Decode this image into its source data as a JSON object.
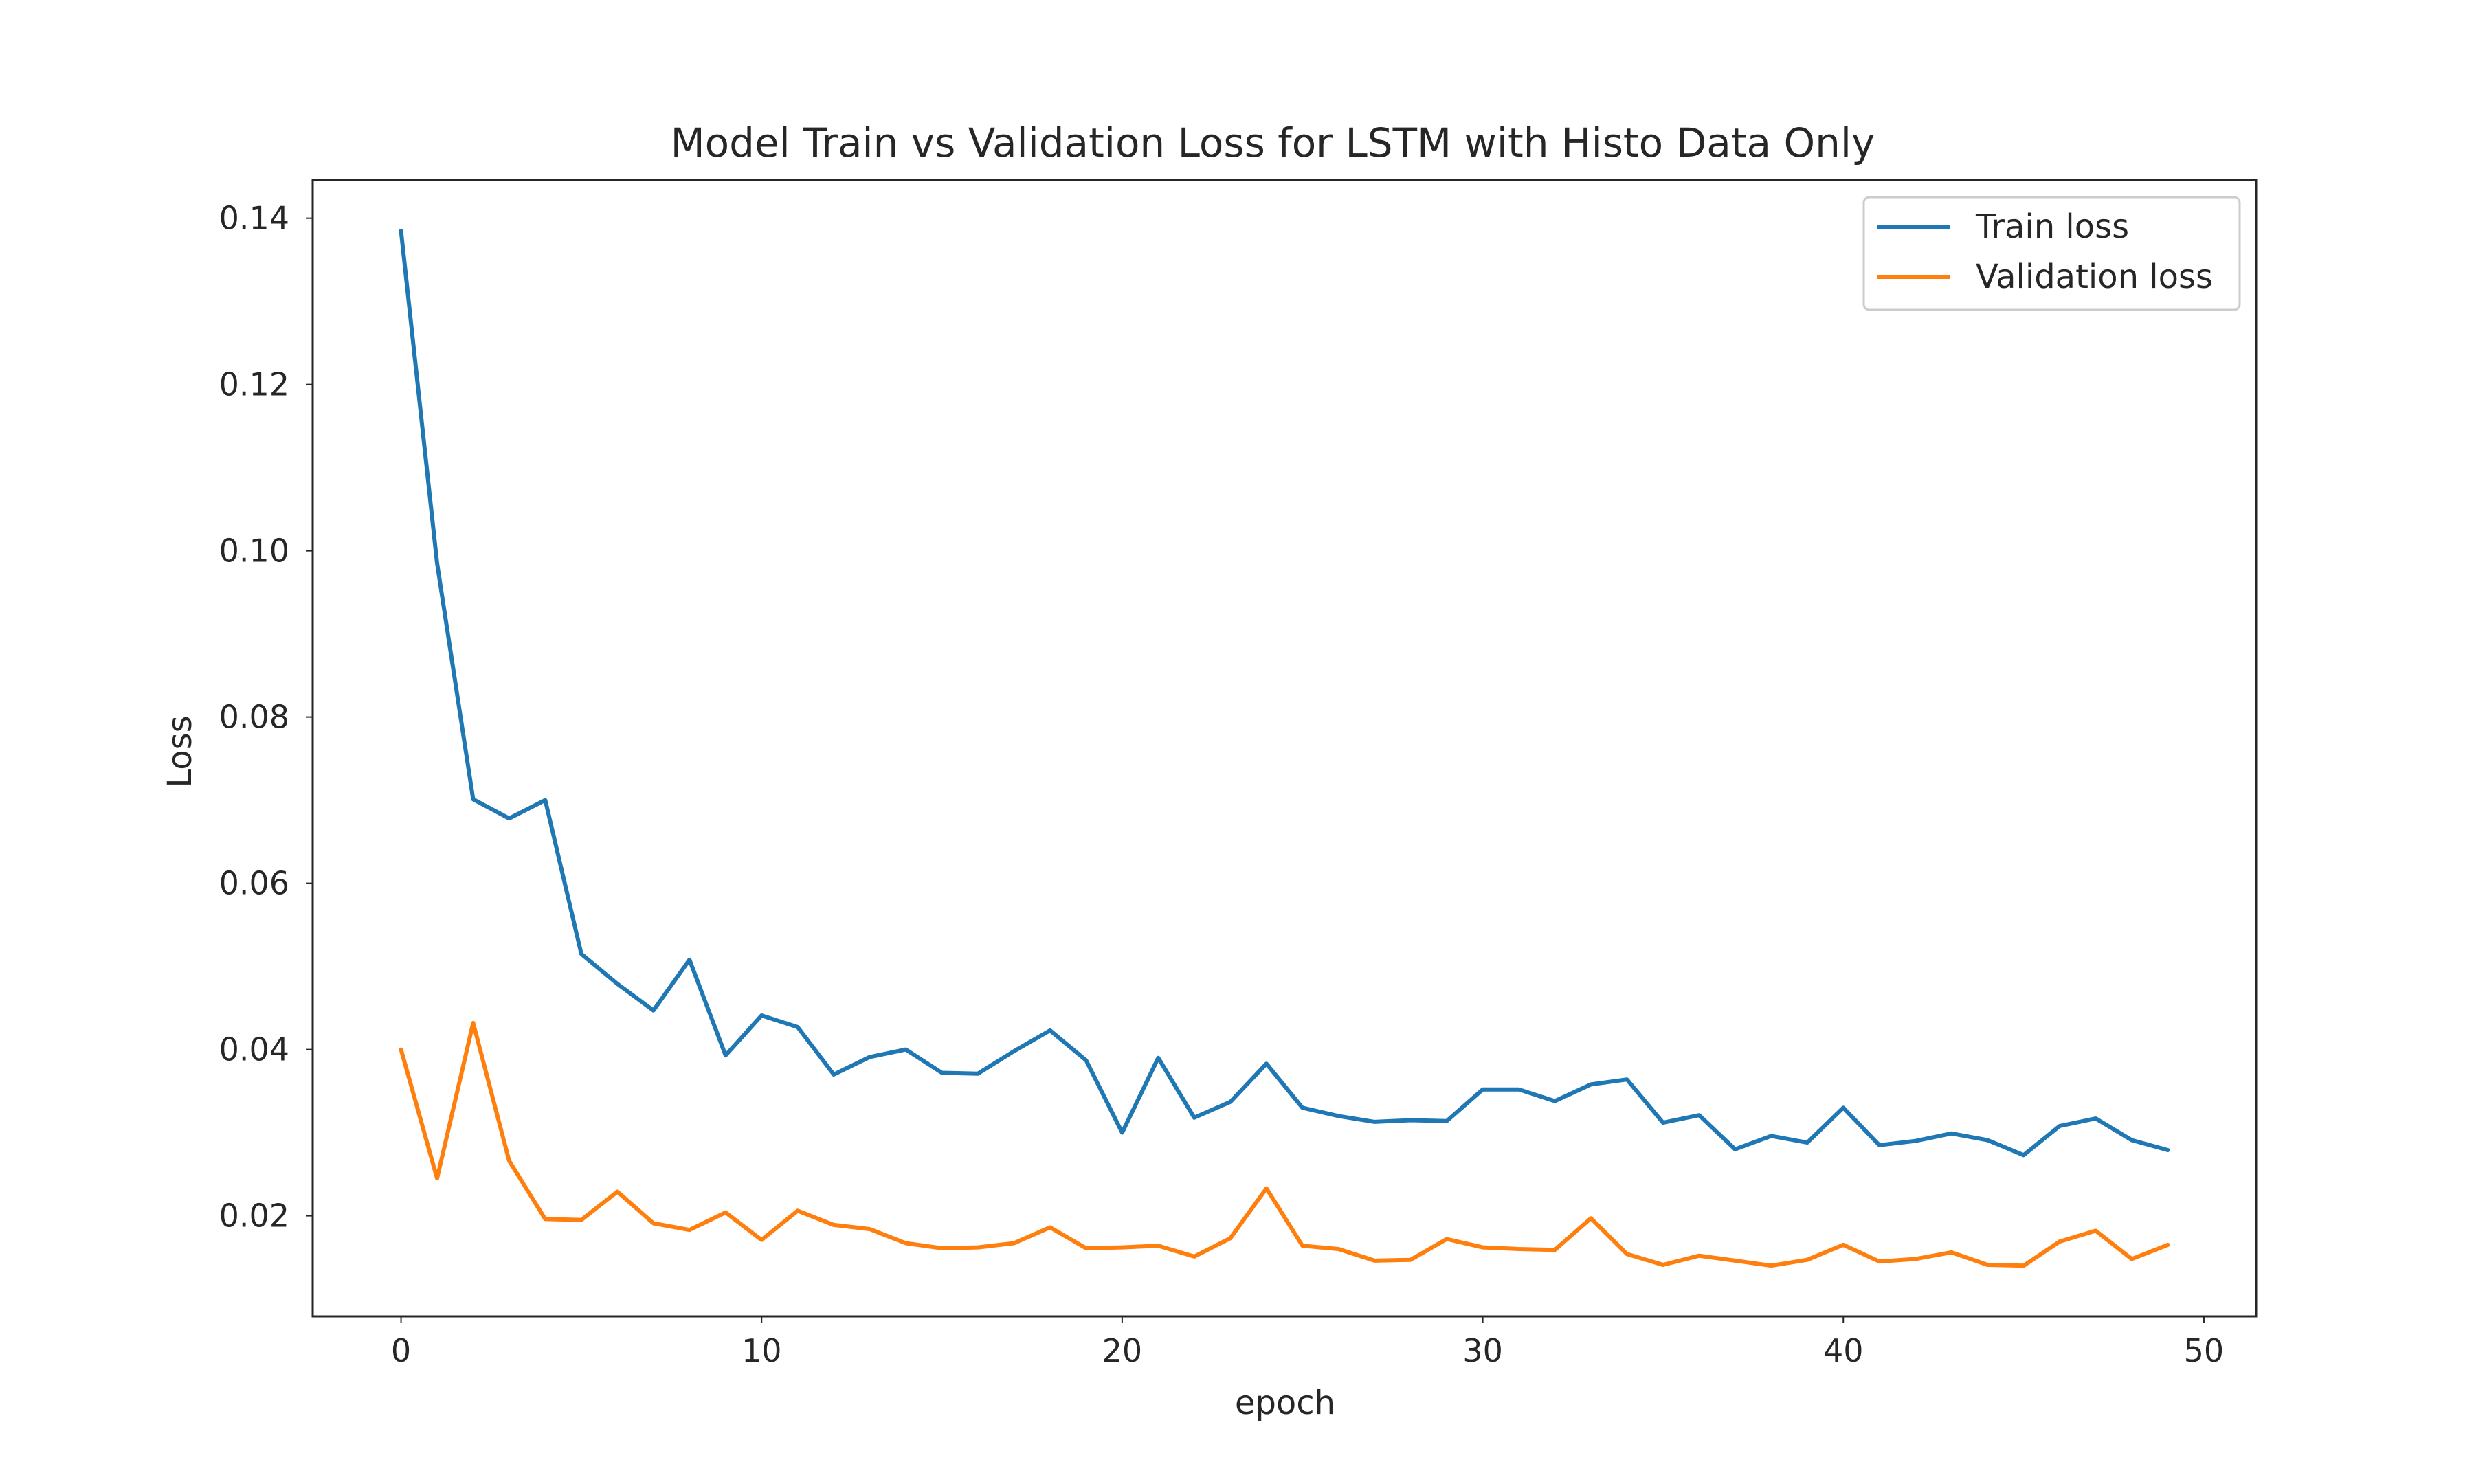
{
  "chart_data": {
    "type": "line",
    "title": "Model Train vs Validation Loss for LSTM with Histo Data Only",
    "xlabel": "epoch",
    "ylabel": "Loss",
    "xlim": [
      -2.45,
      51.45
    ],
    "ylim": [
      0.0079,
      0.1446
    ],
    "xticks": [
      0,
      10,
      20,
      30,
      40,
      50
    ],
    "xtick_labels": [
      "0",
      "10",
      "20",
      "30",
      "40",
      "50"
    ],
    "yticks": [
      0.02,
      0.04,
      0.06,
      0.08,
      0.1,
      0.12,
      0.14
    ],
    "ytick_labels": [
      "0.02",
      "0.04",
      "0.06",
      "0.08",
      "0.10",
      "0.12",
      "0.14"
    ],
    "grid": false,
    "legend_position": "top-right",
    "x": [
      0,
      1,
      2,
      3,
      4,
      5,
      6,
      7,
      8,
      9,
      10,
      11,
      12,
      13,
      14,
      15,
      16,
      17,
      18,
      19,
      20,
      21,
      22,
      23,
      24,
      25,
      26,
      27,
      28,
      29,
      30,
      31,
      32,
      33,
      34,
      35,
      36,
      37,
      38,
      39,
      40,
      41,
      42,
      43,
      44,
      45,
      46,
      47,
      48,
      49
    ],
    "series": [
      {
        "name": "Train loss",
        "color": "#1f77b4",
        "values": [
          0.1385,
          0.0985,
          0.0701,
          0.0678,
          0.07,
          0.0515,
          0.0479,
          0.0447,
          0.0508,
          0.0393,
          0.0441,
          0.0427,
          0.037,
          0.0391,
          0.04,
          0.0372,
          0.0371,
          0.0398,
          0.0423,
          0.0387,
          0.03,
          0.039,
          0.0318,
          0.0337,
          0.0383,
          0.033,
          0.032,
          0.0313,
          0.0315,
          0.0314,
          0.0352,
          0.0352,
          0.0338,
          0.0358,
          0.0364,
          0.0312,
          0.0321,
          0.028,
          0.0296,
          0.0288,
          0.033,
          0.0285,
          0.029,
          0.0299,
          0.0291,
          0.0273,
          0.0308,
          0.0317,
          0.0291,
          0.0279
        ]
      },
      {
        "name": "Validation loss",
        "color": "#ff7f0e",
        "values": [
          0.04,
          0.0245,
          0.0432,
          0.0266,
          0.0196,
          0.0195,
          0.0229,
          0.0191,
          0.0183,
          0.0204,
          0.0171,
          0.0206,
          0.0189,
          0.0184,
          0.0167,
          0.0161,
          0.0162,
          0.0167,
          0.0186,
          0.0161,
          0.0162,
          0.0164,
          0.0151,
          0.0173,
          0.0233,
          0.0164,
          0.016,
          0.0146,
          0.0147,
          0.0172,
          0.0162,
          0.016,
          0.0159,
          0.0197,
          0.0154,
          0.0141,
          0.0152,
          0.0146,
          0.014,
          0.0147,
          0.0165,
          0.0145,
          0.0148,
          0.0156,
          0.0141,
          0.014,
          0.0169,
          0.0182,
          0.0148,
          0.0165
        ]
      }
    ]
  }
}
